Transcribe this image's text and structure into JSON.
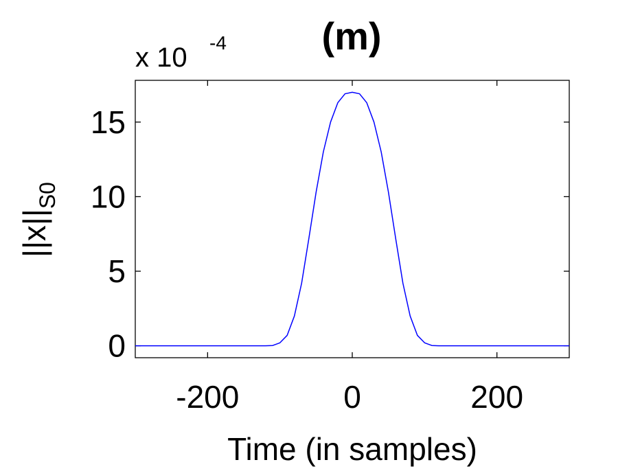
{
  "chart_data": {
    "type": "line",
    "title": "(m)",
    "xlabel": "Time (in samples)",
    "ylabel": {
      "main": "||x||",
      "subscript": "S0"
    },
    "y_multiplier": {
      "prefix": "x 10",
      "exponent": "-4"
    },
    "xlim": [
      -300,
      300
    ],
    "ylim": [
      -0.8,
      17.8
    ],
    "x_ticks": [
      -200,
      0,
      200
    ],
    "x_tick_labels": [
      "-200",
      "0",
      "200"
    ],
    "y_ticks": [
      0,
      5,
      10,
      15
    ],
    "y_tick_labels": [
      "0",
      "5",
      "10",
      "15"
    ],
    "grid": false,
    "legend": "none",
    "series": [
      {
        "color": "#0000ff",
        "x": [
          -300,
          -250,
          -200,
          -150,
          -120,
          -110,
          -100,
          -90,
          -80,
          -70,
          -60,
          -50,
          -40,
          -30,
          -20,
          -10,
          0,
          10,
          20,
          30,
          40,
          50,
          60,
          70,
          80,
          90,
          100,
          110,
          120,
          150,
          200,
          250,
          300
        ],
        "values": [
          0,
          0,
          0,
          0,
          0,
          0.02,
          0.2,
          0.7,
          2.0,
          4.2,
          7.2,
          10.3,
          13.0,
          15.0,
          16.3,
          16.9,
          17.0,
          16.9,
          16.3,
          15.0,
          13.0,
          10.3,
          7.2,
          4.2,
          2.0,
          0.7,
          0.2,
          0.02,
          0,
          0,
          0,
          0,
          0
        ]
      }
    ]
  },
  "colors": {
    "axes": "#000000",
    "line": "#0000ff",
    "background": "#ffffff"
  }
}
